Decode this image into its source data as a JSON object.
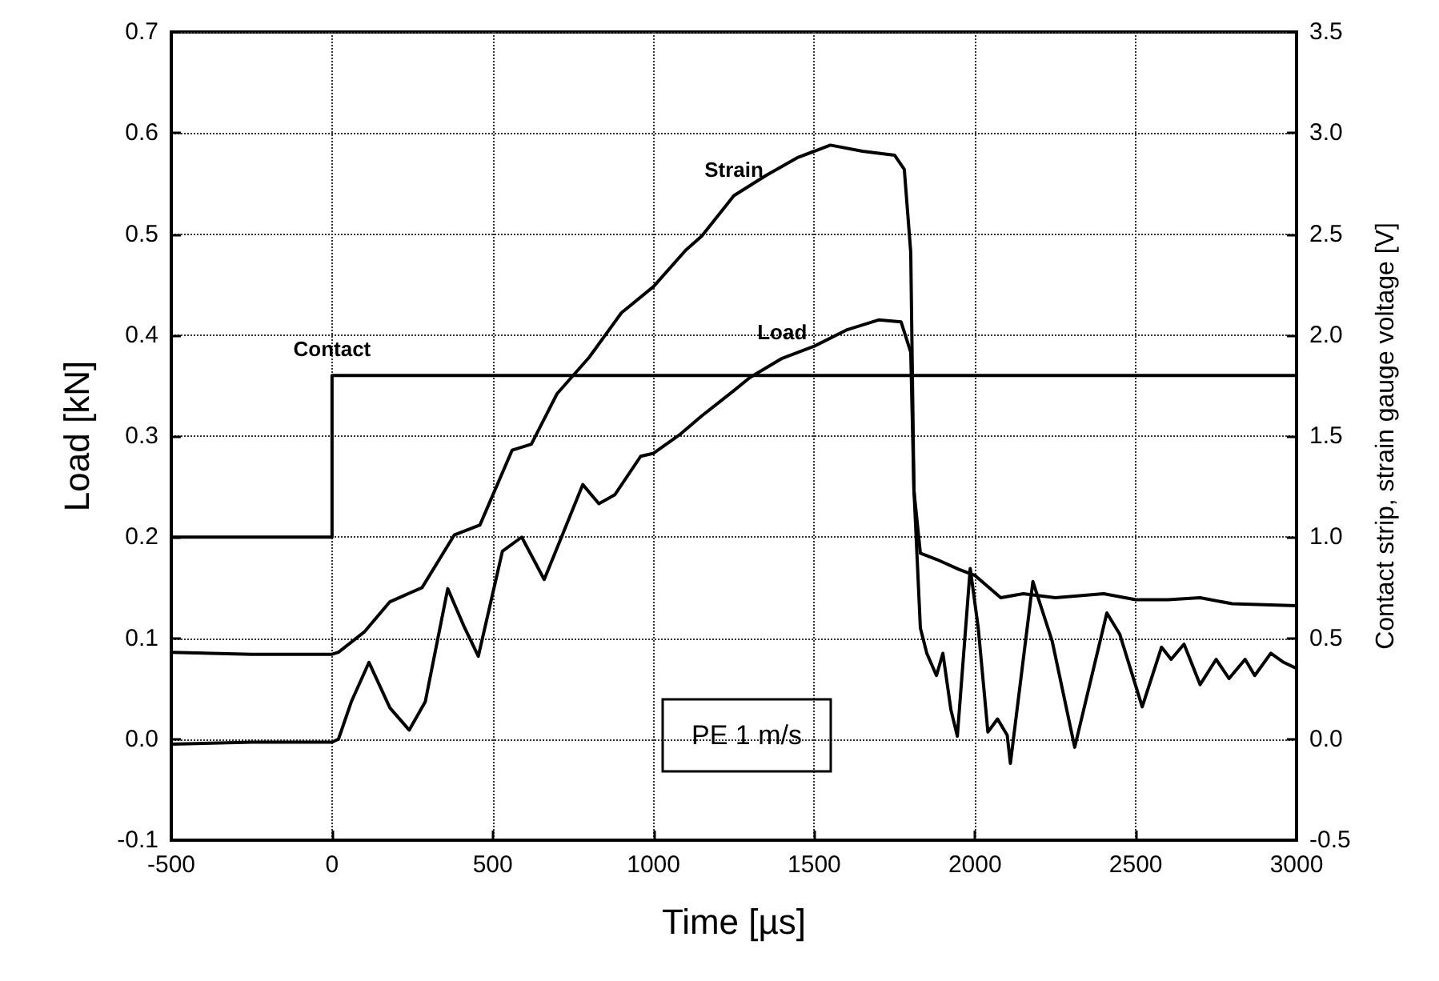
{
  "chart_data": {
    "type": "line",
    "xlabel": "Time [µs]",
    "ylabel": "Load [kN]",
    "y2label": "Contact strip, strain gauge voltage [V]",
    "annotations": [
      "PE 1 m/s"
    ],
    "xlim": [
      -500,
      3000
    ],
    "xticks": [
      -500,
      0,
      500,
      1000,
      1500,
      2000,
      2500,
      3000
    ],
    "ylim": [
      -0.1,
      0.7
    ],
    "yticks": [
      -0.1,
      {
        "value": 0,
        "label": "0.0"
      },
      0.1,
      0.2,
      0.3,
      0.4,
      0.5,
      0.6,
      0.7
    ],
    "y2lim": [
      -0.5,
      3.5
    ],
    "y2ticks": [
      -0.5,
      {
        "value": 0,
        "label": "0.0"
      },
      0.5,
      {
        "value": 1,
        "label": "1.0"
      },
      1.5,
      {
        "value": 2,
        "label": "2.0"
      },
      2.5,
      {
        "value": 3,
        "label": "3.0"
      },
      3.5
    ],
    "grid": true,
    "legend": false,
    "marker": "none",
    "line_style": "solid",
    "series": [
      {
        "name": "Load",
        "color": "#000000",
        "x": [
          -500,
          -250,
          0,
          20,
          60,
          115,
          180,
          240,
          290,
          360,
          410,
          455,
          530,
          590,
          660,
          720,
          780,
          830,
          880,
          960,
          1000,
          1080,
          1150,
          1250,
          1300,
          1400,
          1500,
          1600,
          1700,
          1770,
          1800,
          1810,
          1830,
          1850,
          1880,
          1900,
          1925,
          1945,
          1985,
          2010,
          2040,
          2070,
          2100,
          2110,
          2180,
          2240,
          2310,
          2410,
          2450,
          2520,
          2580,
          2610,
          2650,
          2700,
          2750,
          2790,
          2840,
          2870,
          2920,
          2960,
          3000
        ],
        "values": [
          -0.005,
          -0.003,
          -0.003,
          0,
          0.037,
          0.076,
          0.031,
          0.009,
          0.037,
          0.149,
          0.112,
          0.082,
          0.186,
          0.2,
          0.158,
          0.205,
          0.252,
          0.233,
          0.242,
          0.28,
          0.283,
          0.301,
          0.32,
          0.345,
          0.358,
          0.377,
          0.389,
          0.405,
          0.415,
          0.413,
          0.383,
          0.247,
          0.11,
          0.085,
          0.063,
          0.085,
          0.029,
          0.003,
          0.169,
          0.11,
          0.007,
          0.02,
          0.004,
          -0.024,
          0.156,
          0.097,
          -0.008,
          0.125,
          0.104,
          0.032,
          0.091,
          0.079,
          0.094,
          0.054,
          0.079,
          0.06,
          0.079,
          0.063,
          0.085,
          0.076,
          0.07
        ]
      },
      {
        "name": "Strain",
        "color": "#000000",
        "axis": "y2",
        "x": [
          -500,
          -250,
          0,
          20,
          100,
          180,
          280,
          380,
          460,
          560,
          620,
          700,
          800,
          900,
          1000,
          1100,
          1150,
          1250,
          1350,
          1450,
          1550,
          1650,
          1750,
          1780,
          1800,
          1810,
          1830,
          1880,
          1950,
          2000,
          2080,
          2150,
          2250,
          2400,
          2500,
          2600,
          2700,
          2800,
          3000
        ],
        "values": [
          0.43,
          0.42,
          0.42,
          0.43,
          0.53,
          0.68,
          0.75,
          1.01,
          1.06,
          1.43,
          1.46,
          1.71,
          1.89,
          2.11,
          2.24,
          2.42,
          2.49,
          2.69,
          2.79,
          2.88,
          2.94,
          2.91,
          2.89,
          2.82,
          2.41,
          1.23,
          0.92,
          0.89,
          0.84,
          0.81,
          0.7,
          0.72,
          0.7,
          0.72,
          0.69,
          0.69,
          0.7,
          0.67,
          0.66
        ]
      },
      {
        "name": "Contact",
        "color": "#000000",
        "axis": "y2",
        "x": [
          -500,
          0,
          0,
          3000
        ],
        "values": [
          1.0,
          1.0,
          1.8,
          1.8
        ]
      }
    ]
  }
}
